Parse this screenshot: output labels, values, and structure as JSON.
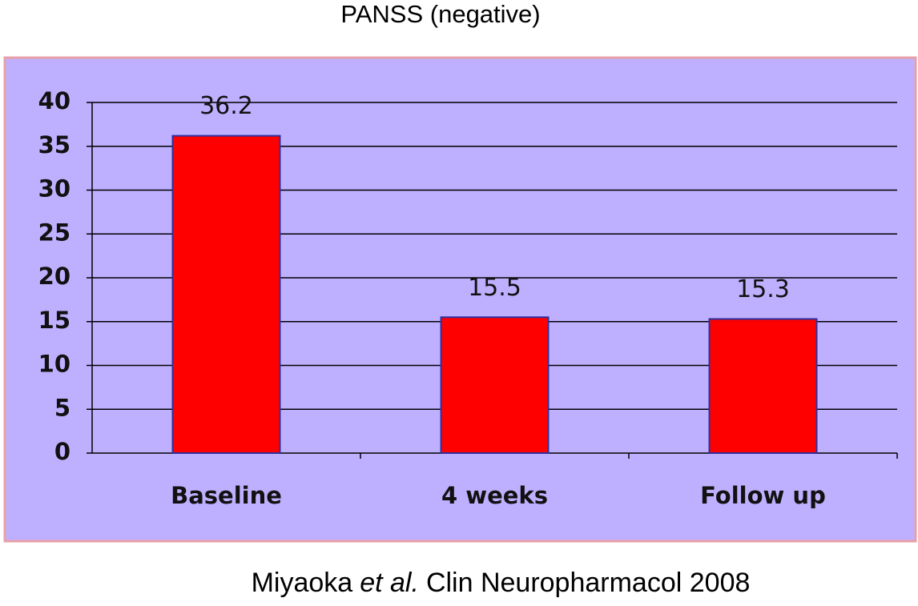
{
  "chart_data": {
    "type": "bar",
    "title": "PANSS (negative)",
    "categories": [
      "Baseline",
      "4 weeks",
      "Follow up"
    ],
    "values": [
      36.2,
      15.5,
      15.3
    ],
    "color": "#ff0000",
    "ylim": [
      0,
      40
    ],
    "yticks": [
      0,
      5,
      10,
      15,
      20,
      25,
      30,
      35,
      40
    ],
    "grid": true,
    "source": {
      "author": "Miyaoka",
      "etal": "et al.",
      "journal": "Clin Neuropharmacol 2008"
    }
  }
}
